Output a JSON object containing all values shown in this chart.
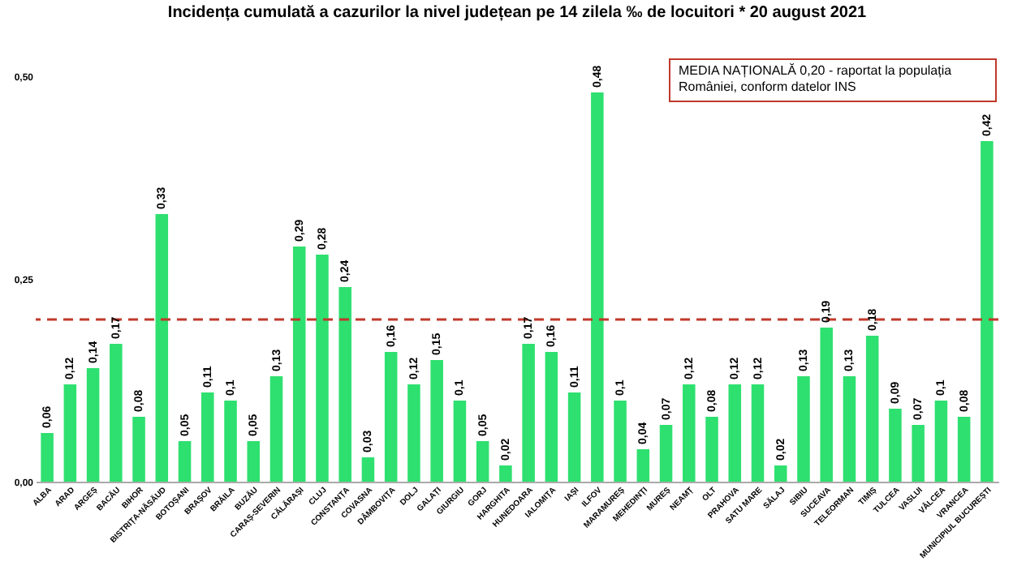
{
  "chart_data": {
    "type": "bar",
    "title": "Incidența cumulată a cazurilor la nivel județean pe 14 zilela ‰ de locuitori *  20 august 2021",
    "categories": [
      "ALBA",
      "ARAD",
      "ARGEȘ",
      "BACĂU",
      "BIHOR",
      "BISTRIȚA-NĂSĂUD",
      "BOTOȘANI",
      "BRAȘOV",
      "BRĂILA",
      "BUZĂU",
      "CARAȘ-SEVERIN",
      "CĂLĂRAȘI",
      "CLUJ",
      "CONSTANȚA",
      "COVASNA",
      "DÂMBOVIȚA",
      "DOLJ",
      "GALAȚI",
      "GIURGIU",
      "GORJ",
      "HARGHITA",
      "HUNEDOARA",
      "IALOMIȚA",
      "IAȘI",
      "ILFOV",
      "MARAMUREȘ",
      "MEHEDINȚI",
      "MUREȘ",
      "NEAMȚ",
      "OLT",
      "PRAHOVA",
      "SATU MARE",
      "SĂLAJ",
      "SIBIU",
      "SUCEAVA",
      "TELEORMAN",
      "TIMIȘ",
      "TULCEA",
      "VASLUI",
      "VÂLCEA",
      "VRANCEA",
      "MUNICIPIUL BUCUREȘTI"
    ],
    "values": [
      0.06,
      0.12,
      0.14,
      0.17,
      0.08,
      0.33,
      0.05,
      0.11,
      0.1,
      0.05,
      0.13,
      0.29,
      0.28,
      0.24,
      0.03,
      0.16,
      0.12,
      0.15,
      0.1,
      0.05,
      0.02,
      0.17,
      0.16,
      0.11,
      0.48,
      0.1,
      0.04,
      0.07,
      0.12,
      0.08,
      0.12,
      0.12,
      0.02,
      0.13,
      0.19,
      0.13,
      0.18,
      0.09,
      0.07,
      0.1,
      0.08,
      0.42
    ],
    "value_labels": [
      "0,06",
      "0,12",
      "0,14",
      "0,17",
      "0,08",
      "0,33",
      "0,05",
      "0,11",
      "0,1",
      "0,05",
      "0,13",
      "0,29",
      "0,28",
      "0,24",
      "0,03",
      "0,16",
      "0,12",
      "0,15",
      "0,1",
      "0,05",
      "0,02",
      "0,17",
      "0,16",
      "0,11",
      "0,48",
      "0,1",
      "0,04",
      "0,07",
      "0,12",
      "0,08",
      "0,12",
      "0,12",
      "0,02",
      "0,13",
      "0,19",
      "0,13",
      "0,18",
      "0,09",
      "0,07",
      "0,1",
      "0,08",
      "0,42"
    ],
    "color": "#2ee06f",
    "ylim": [
      0,
      0.5
    ],
    "yticks": [
      {
        "value": 0,
        "label": "0,00"
      },
      {
        "value": 0.25,
        "label": "0,25"
      },
      {
        "value": 0.5,
        "label": "0,50"
      }
    ],
    "ref_lines": [
      {
        "axis": "y",
        "value": 0.2,
        "color": "#c0392b",
        "line_style": "dashed"
      }
    ],
    "annotations": [
      "MEDIA NAȚIONALĂ 0,20 - raportat la populația României, conform datelor INS"
    ]
  }
}
